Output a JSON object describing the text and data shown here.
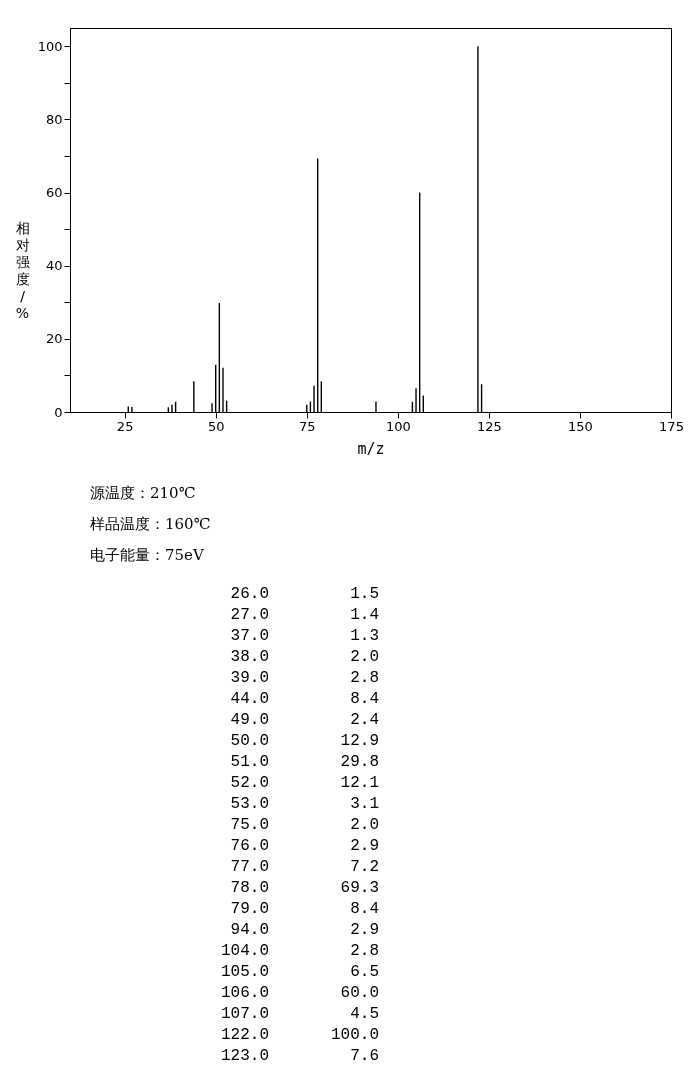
{
  "chart_data": [
    {
      "type": "bar",
      "xlabel": "m/z",
      "ylabel": "相对强度/%",
      "x": [
        26,
        27,
        37,
        38,
        39,
        44,
        49,
        50,
        51,
        52,
        53,
        75,
        76,
        77,
        78,
        79,
        94,
        104,
        105,
        106,
        107,
        122,
        123
      ],
      "values": [
        1.5,
        1.4,
        1.3,
        2.0,
        2.8,
        8.4,
        2.4,
        12.9,
        29.8,
        12.1,
        3.1,
        2.0,
        2.9,
        7.2,
        69.3,
        8.4,
        2.9,
        2.8,
        6.5,
        60.0,
        4.5,
        100.0,
        7.6
      ],
      "color": "#000000",
      "xlim": [
        10,
        175
      ],
      "xticks": [
        25,
        50,
        75,
        100,
        125,
        150,
        175
      ],
      "ylim": [
        0,
        105
      ],
      "yticks": [
        0,
        {
          "value": 10,
          "label": null
        },
        20,
        {
          "value": 30,
          "label": null
        },
        40,
        {
          "value": 50,
          "label": null
        },
        60,
        {
          "value": 70,
          "label": null
        },
        80,
        {
          "value": 90,
          "label": null
        },
        100
      ],
      "grid": false,
      "annotations": [
        "源温度：210℃",
        "样品温度：160℃",
        "电子能量：75eV"
      ]
    },
    {
      "type": "other",
      "categories": [
        "26.0",
        "27.0",
        "37.0",
        "38.0",
        "39.0",
        "44.0",
        "49.0",
        "50.0",
        "51.0",
        "52.0",
        "53.0",
        "75.0",
        "76.0",
        "77.0",
        "78.0",
        "79.0",
        "94.0",
        "104.0",
        "105.0",
        "106.0",
        "107.0",
        "122.0",
        "123.0"
      ],
      "value_labels": [
        "1.5",
        "1.4",
        "1.3",
        "2.0",
        "2.8",
        "8.4",
        "2.4",
        "12.9",
        "29.8",
        "12.1",
        "3.1",
        "2.0",
        "2.9",
        "7.2",
        "69.3",
        "8.4",
        "2.9",
        "2.8",
        "6.5",
        "60.0",
        "4.5",
        "100.0",
        "7.6"
      ]
    }
  ]
}
